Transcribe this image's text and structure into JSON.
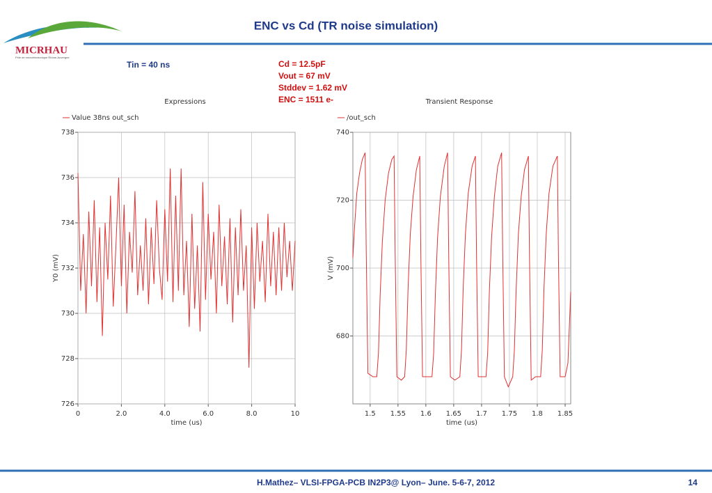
{
  "header": {
    "title": "ENC vs Cd (TR noise simulation)",
    "logo": "MICRHAU",
    "logo_subtitle": "Pôle de microélectronique Rhône-Auvergne"
  },
  "left_note": "Tin = 40 ns",
  "annotation": [
    "Cd = 12.5pF",
    "Vout  = 67 mV",
    "Stddev = 1.62 mV",
    "ENC = 1511 e-"
  ],
  "footer": {
    "text": "H.Mathez– VLSI-FPGA-PCB  IN2P3@ Lyon– June. 5-6-7, 2012",
    "page": "14"
  },
  "chart_data": [
    {
      "type": "line",
      "title": "Expressions",
      "xlabel": "time (us)",
      "ylabel": "Y0 (mV)",
      "grid": true,
      "xlim": [
        0,
        10
      ],
      "xticks": [
        0,
        {
          "value": 2,
          "label": "2.0"
        },
        {
          "value": 4,
          "label": "4.0"
        },
        {
          "value": 6,
          "label": "6.0"
        },
        {
          "value": 8,
          "label": "8.0"
        },
        10
      ],
      "ylim": [
        726,
        738
      ],
      "yticks": [
        726,
        728,
        730,
        732,
        734,
        736,
        738
      ],
      "series": [
        {
          "name": "Value 38ns out_sch",
          "color": "#e03030",
          "x": [
            0,
            0.125,
            0.25,
            0.375,
            0.5,
            0.625,
            0.75,
            0.875,
            1,
            1.125,
            1.25,
            1.375,
            1.5,
            1.625,
            1.75,
            1.875,
            2,
            2.125,
            2.25,
            2.375,
            2.5,
            2.625,
            2.75,
            2.875,
            3,
            3.125,
            3.25,
            3.375,
            3.5,
            3.625,
            3.75,
            3.875,
            4,
            4.125,
            4.25,
            4.375,
            4.5,
            4.625,
            4.75,
            4.875,
            5,
            5.125,
            5.25,
            5.375,
            5.5,
            5.625,
            5.75,
            5.875,
            6,
            6.125,
            6.25,
            6.375,
            6.5,
            6.625,
            6.75,
            6.875,
            7,
            7.125,
            7.25,
            7.375,
            7.5,
            7.625,
            7.75,
            7.875,
            8,
            8.125,
            8.25,
            8.375,
            8.5,
            8.625,
            8.75,
            8.875,
            9,
            9.125,
            9.25,
            9.375,
            9.5,
            9.625,
            9.75,
            9.875,
            10
          ],
          "values": [
            736.2,
            731,
            733.5,
            730,
            734.5,
            731.2,
            735,
            730.5,
            733.8,
            729,
            734,
            731.5,
            735.2,
            730.3,
            733,
            736,
            731.2,
            734.8,
            730,
            733.6,
            731.8,
            735.4,
            730.8,
            733,
            731,
            734.2,
            730.4,
            733.8,
            731.3,
            735,
            732,
            730.6,
            734.6,
            731.4,
            736.4,
            730.5,
            735.2,
            731,
            736.4,
            730.8,
            733.2,
            729.4,
            734.4,
            730.2,
            733,
            729.2,
            735.8,
            730.6,
            734.4,
            731.5,
            733.6,
            730,
            734.8,
            731.2,
            733.4,
            730.4,
            734.2,
            729.6,
            733.8,
            730.8,
            734.6,
            731,
            733,
            727.6,
            733.8,
            730.2,
            734,
            731.4,
            733.2,
            730.5,
            734.4,
            731.2,
            733.6,
            730.8,
            733.8,
            731,
            734,
            731.6,
            733.2,
            731,
            733.2
          ]
        }
      ]
    },
    {
      "type": "line",
      "title": "Transient Response",
      "xlabel": "time (us)",
      "ylabel": "V (mV)",
      "grid": true,
      "xlim": [
        1.469,
        1.86
      ],
      "xticks": [
        1.5,
        1.55,
        1.6,
        1.65,
        1.7,
        1.75,
        1.8,
        1.85
      ],
      "ylim": [
        660,
        740
      ],
      "yticks": [
        680,
        700,
        720,
        740
      ],
      "series": [
        {
          "name": "/out_sch",
          "color": "#e03030",
          "x": [
            1.469,
            1.472,
            1.476,
            1.481,
            1.486,
            1.491,
            1.493,
            1.496,
            1.505,
            1.512,
            1.515,
            1.518,
            1.522,
            1.527,
            1.533,
            1.539,
            1.543,
            1.545,
            1.548,
            1.556,
            1.562,
            1.565,
            1.568,
            1.572,
            1.577,
            1.583,
            1.589,
            1.591,
            1.594,
            1.603,
            1.611,
            1.614,
            1.617,
            1.621,
            1.626,
            1.633,
            1.639,
            1.641,
            1.644,
            1.652,
            1.661,
            1.664,
            1.667,
            1.671,
            1.676,
            1.683,
            1.689,
            1.691,
            1.694,
            1.701,
            1.708,
            1.711,
            1.714,
            1.718,
            1.723,
            1.729,
            1.736,
            1.738,
            1.741,
            1.748,
            1.756,
            1.759,
            1.762,
            1.766,
            1.771,
            1.777,
            1.784,
            1.786,
            1.789,
            1.797,
            1.806,
            1.809,
            1.812,
            1.816,
            1.821,
            1.828,
            1.836,
            1.838,
            1.841,
            1.85,
            1.855,
            1.86
          ],
          "values": [
            703,
            712,
            722,
            728,
            732,
            734,
            705,
            669,
            668,
            668,
            675,
            692,
            708,
            720,
            728,
            732,
            733,
            704,
            668,
            667,
            668,
            676,
            694,
            710,
            721,
            729,
            733,
            703,
            668,
            668,
            668,
            675,
            692,
            709,
            721,
            730,
            734,
            704,
            668,
            667,
            668,
            676,
            694,
            710,
            722,
            730,
            733,
            703,
            668,
            668,
            668,
            675,
            693,
            709,
            721,
            730,
            734,
            704,
            668,
            665,
            668,
            676,
            693,
            710,
            721,
            729,
            733,
            703,
            667,
            668,
            668,
            676,
            694,
            710,
            722,
            730,
            733,
            703,
            668,
            668,
            672,
            693
          ]
        }
      ]
    }
  ]
}
